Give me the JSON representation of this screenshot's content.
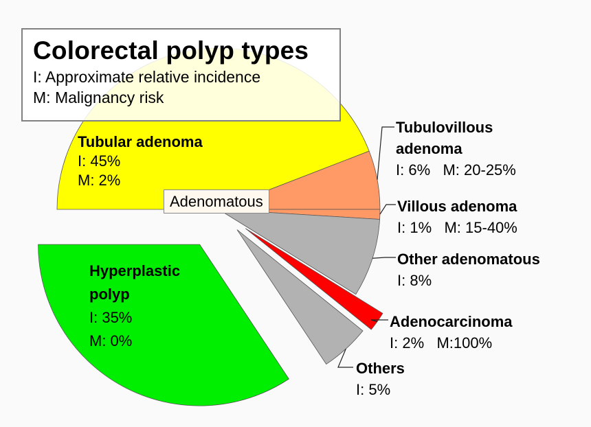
{
  "legend": {
    "title": "Colorectal polyp types",
    "line1": "I: Approximate relative incidence",
    "line2": "M: Malignancy risk"
  },
  "group_label": "Adenomatous",
  "chart_data": {
    "type": "pie",
    "title": "Colorectal polyp types",
    "slices": [
      {
        "key": "tubular",
        "name": "Tubular adenoma",
        "incidence": 45,
        "malignancy": "M: 2%",
        "incidence_label": "I: 45%",
        "color": "#ffff00",
        "group": "Adenomatous"
      },
      {
        "key": "tubulovillous",
        "name": "Tubulovillous adenoma",
        "incidence": 6,
        "malignancy": "M: 20-25%",
        "incidence_label": "I: 6%",
        "color": "#ff9966",
        "group": "Adenomatous"
      },
      {
        "key": "villous",
        "name": "Villous adenoma",
        "incidence": 1,
        "malignancy": "M: 15-40%",
        "incidence_label": "I: 1%",
        "color": "#ff9966",
        "group": "Adenomatous"
      },
      {
        "key": "other_adenomatous",
        "name": "Other adenomatous",
        "incidence": 8,
        "malignancy": "",
        "incidence_label": "I: 8%",
        "color": "#b2b2b2",
        "group": "Adenomatous"
      },
      {
        "key": "adenocarcinoma",
        "name": "Adenocarcinoma",
        "incidence": 2,
        "malignancy": "M:100%",
        "incidence_label": "I: 2%",
        "color": "#ff0000",
        "group": ""
      },
      {
        "key": "others",
        "name": "Others",
        "incidence": 5,
        "malignancy": "",
        "incidence_label": "I: 5%",
        "color": "#b2b2b2",
        "group": ""
      },
      {
        "key": "hyperplastic",
        "name": "Hyperplastic polyp",
        "incidence": 35,
        "malignancy": "M: 0%",
        "incidence_label": "I: 35%",
        "color": "#00ee00",
        "group": ""
      }
    ],
    "labels": {
      "tubular": {
        "name_lines": [
          "Tubular adenoma"
        ],
        "incidence": "I: 45%",
        "malignancy": "M: 2%"
      },
      "tubulovillous": {
        "name_lines": [
          "Tubulovillous",
          "adenoma"
        ],
        "detail": "I: 6%   M: 20-25%"
      },
      "villous": {
        "name_lines": [
          "Villous adenoma"
        ],
        "detail": "I: 1%   M: 15-40%"
      },
      "other_adenomatous": {
        "name_lines": [
          "Other adenomatous"
        ],
        "detail": "I: 8%"
      },
      "adenocarcinoma": {
        "name_lines": [
          "Adenocarcinoma"
        ],
        "detail": "I: 2%   M:100%"
      },
      "others": {
        "name_lines": [
          "Others"
        ],
        "detail": "I: 5%"
      },
      "hyperplastic": {
        "name_lines": [
          "Hyperplastic",
          "polyp"
        ],
        "incidence": "I: 35%",
        "malignancy": "M: 0%"
      }
    }
  }
}
